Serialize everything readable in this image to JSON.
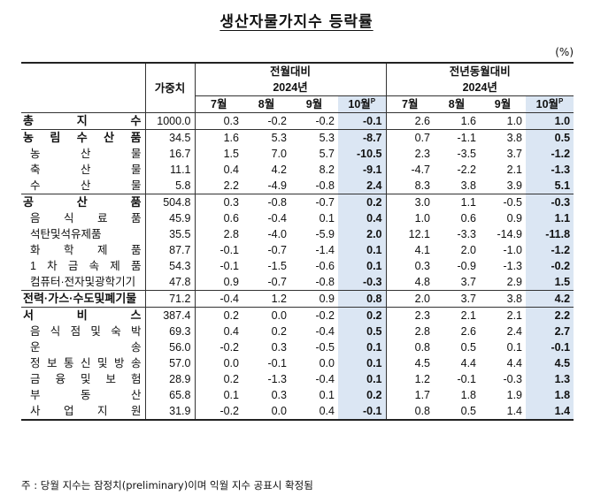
{
  "title": "생산자물가지수 등락률",
  "unit": "(%)",
  "headers": {
    "weight": "가중치",
    "mom": "전월대비",
    "yoy": "전년동월대비",
    "year": "2024년",
    "months": [
      "7월",
      "8월",
      "9월",
      "10월"
    ],
    "prelim_mark": "P"
  },
  "rows": [
    {
      "name": "총 지 수",
      "level": "major",
      "weight": "1000.0",
      "mom": [
        "0.3",
        "-0.2",
        "-0.2",
        "-0.1"
      ],
      "yoy": [
        "2.6",
        "1.6",
        "1.0",
        "1.0"
      ]
    },
    {
      "name": "농 림 수 산 품",
      "level": "major",
      "weight": "34.5",
      "mom": [
        "1.6",
        "5.3",
        "5.3",
        "-8.7"
      ],
      "yoy": [
        "0.7",
        "-1.1",
        "3.8",
        "0.5"
      ]
    },
    {
      "name": "농 산 물",
      "level": "sub",
      "weight": "16.7",
      "mom": [
        "1.5",
        "7.0",
        "5.7",
        "-10.5"
      ],
      "yoy": [
        "2.3",
        "-3.5",
        "3.7",
        "-1.2"
      ]
    },
    {
      "name": "축 산 물",
      "level": "sub",
      "weight": "11.1",
      "mom": [
        "0.4",
        "4.2",
        "8.2",
        "-9.1"
      ],
      "yoy": [
        "-4.7",
        "-2.2",
        "2.1",
        "-1.3"
      ]
    },
    {
      "name": "수 산 물",
      "level": "sub",
      "weight": "5.8",
      "mom": [
        "2.2",
        "-4.9",
        "-0.8",
        "2.4"
      ],
      "yoy": [
        "8.3",
        "3.8",
        "3.9",
        "5.1"
      ]
    },
    {
      "name": "공 산 품",
      "level": "major",
      "weight": "504.8",
      "mom": [
        "0.3",
        "-0.8",
        "-0.7",
        "0.2"
      ],
      "yoy": [
        "3.0",
        "1.1",
        "-0.5",
        "-0.3"
      ]
    },
    {
      "name": "음 식 료 품",
      "level": "sub",
      "weight": "45.9",
      "mom": [
        "0.6",
        "-0.4",
        "0.1",
        "0.4"
      ],
      "yoy": [
        "1.0",
        "0.6",
        "0.9",
        "1.1"
      ]
    },
    {
      "name": "석탄및석유제품",
      "level": "sub",
      "weight": "35.5",
      "mom": [
        "2.8",
        "-4.0",
        "-5.9",
        "2.0"
      ],
      "yoy": [
        "12.1",
        "-3.3",
        "-14.9",
        "-11.8"
      ]
    },
    {
      "name": "화 학 제 품",
      "level": "sub",
      "weight": "87.7",
      "mom": [
        "-0.1",
        "-0.7",
        "-1.4",
        "0.1"
      ],
      "yoy": [
        "4.1",
        "2.0",
        "-1.0",
        "-1.2"
      ]
    },
    {
      "name": "1 차 금 속 제 품",
      "level": "sub",
      "weight": "54.3",
      "mom": [
        "-0.1",
        "-1.5",
        "-0.6",
        "0.1"
      ],
      "yoy": [
        "0.3",
        "-0.9",
        "-1.3",
        "-0.2"
      ]
    },
    {
      "name": "컴퓨터·전자및광학기기",
      "level": "sub",
      "weight": "47.8",
      "mom": [
        "0.9",
        "-0.7",
        "-0.8",
        "-0.3"
      ],
      "yoy": [
        "4.8",
        "3.7",
        "2.9",
        "1.5"
      ]
    },
    {
      "name": "전력·가스·수도및폐기물",
      "level": "major",
      "weight": "71.2",
      "mom": [
        "-0.4",
        "1.2",
        "0.9",
        "0.8"
      ],
      "yoy": [
        "2.0",
        "3.7",
        "3.8",
        "4.2"
      ]
    },
    {
      "name": "서 비 스",
      "level": "major",
      "weight": "387.4",
      "mom": [
        "0.2",
        "0.0",
        "-0.2",
        "0.2"
      ],
      "yoy": [
        "2.3",
        "2.1",
        "2.1",
        "2.2"
      ]
    },
    {
      "name": "음 식 점 및 숙 박",
      "level": "sub",
      "weight": "69.3",
      "mom": [
        "0.4",
        "0.2",
        "-0.4",
        "0.5"
      ],
      "yoy": [
        "2.8",
        "2.6",
        "2.4",
        "2.7"
      ]
    },
    {
      "name": "운 송",
      "level": "sub",
      "weight": "56.0",
      "mom": [
        "-0.2",
        "0.3",
        "-0.5",
        "0.1"
      ],
      "yoy": [
        "0.8",
        "0.5",
        "0.1",
        "-0.1"
      ]
    },
    {
      "name": "정 보 통 신 및 방 송",
      "level": "sub",
      "weight": "57.0",
      "mom": [
        "0.0",
        "-0.1",
        "0.0",
        "0.1"
      ],
      "yoy": [
        "4.5",
        "4.4",
        "4.4",
        "4.5"
      ]
    },
    {
      "name": "금 융 및 보 험",
      "level": "sub",
      "weight": "28.9",
      "mom": [
        "0.2",
        "-1.3",
        "-0.4",
        "0.1"
      ],
      "yoy": [
        "1.2",
        "-0.1",
        "-0.3",
        "1.3"
      ]
    },
    {
      "name": "부 동 산",
      "level": "sub",
      "weight": "65.8",
      "mom": [
        "0.1",
        "0.3",
        "0.1",
        "0.2"
      ],
      "yoy": [
        "1.7",
        "1.8",
        "1.9",
        "1.8"
      ]
    },
    {
      "name": "사 업 지 원",
      "level": "sub",
      "weight": "31.9",
      "mom": [
        "-0.2",
        "0.0",
        "0.4",
        "-0.1"
      ],
      "yoy": [
        "0.8",
        "0.5",
        "1.4",
        "1.4"
      ]
    }
  ],
  "footnote": "주 : 당월 지수는 잠정치(preliminary)이며 익월 지수 공표시 확정됨",
  "colors": {
    "highlight": "#dbe6f3",
    "text": "#111111"
  }
}
